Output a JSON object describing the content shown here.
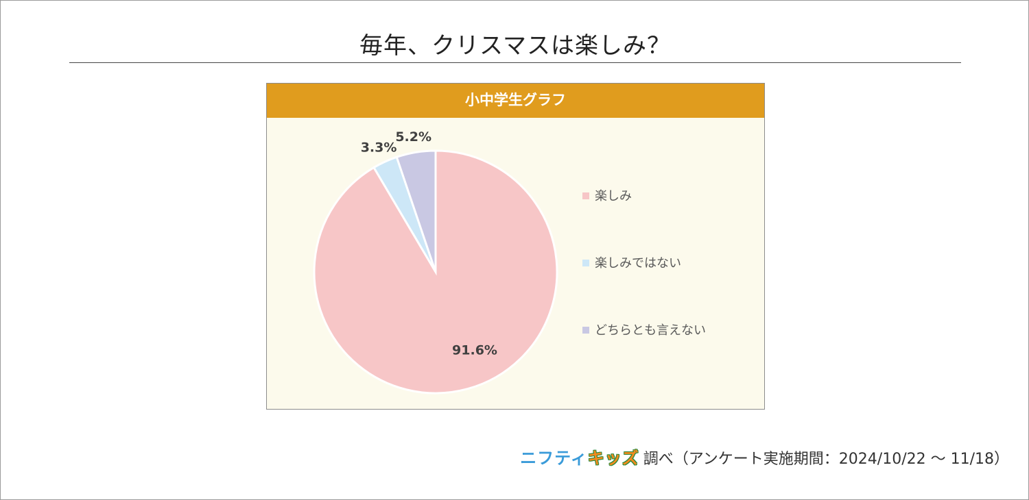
{
  "title": "毎年、クリスマスは楽しみ？",
  "panel_title": "小中学生グラフ",
  "chart_data": {
    "type": "pie",
    "title": "小中学生グラフ",
    "slices": [
      {
        "label": "楽しみ",
        "value": 91.6,
        "display": "91.6%",
        "color": "#f7c6c7"
      },
      {
        "label": "楽しみではない",
        "value": 3.3,
        "display": "3.3%",
        "color": "#cde7f7"
      },
      {
        "label": "どちらとも言えない",
        "value": 5.2,
        "display": "5.2%",
        "color": "#c9c8e3"
      }
    ],
    "start": "12 o'clock",
    "direction": "clockwise",
    "legend_position": "right"
  },
  "source": {
    "logo_part1": "ニフティ",
    "logo_part2": "キッズ",
    "text": "調べ（アンケート実施期間：2024/10/22 ～ 11/18）"
  }
}
